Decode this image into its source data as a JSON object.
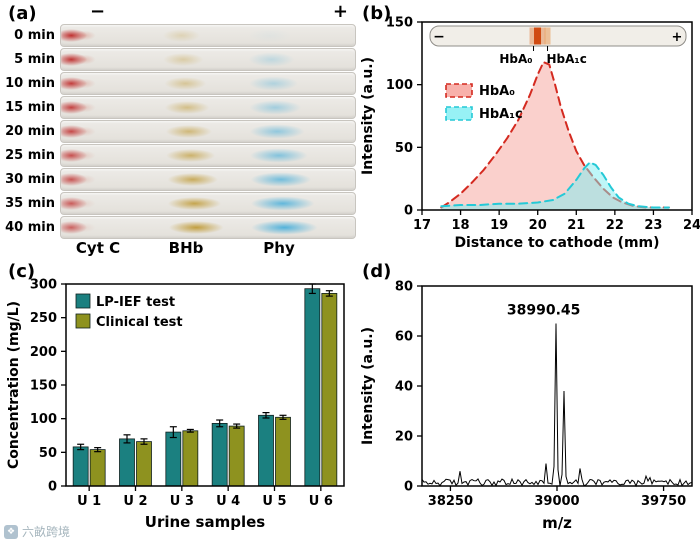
{
  "watermark": {
    "text": "六畝跨境",
    "icon": "❖"
  },
  "panel_a": {
    "label": "(a)",
    "minus": "−",
    "plus": "+",
    "rows": [
      "0 min",
      "5 min",
      "10 min",
      "15 min",
      "20 min",
      "25 min",
      "30 min",
      "35 min",
      "40 min"
    ],
    "lanes": [
      "Cyt C",
      "BHb",
      "Phy"
    ]
  },
  "panel_b": {
    "label": "(b)",
    "inset": {
      "minus": "−",
      "plus": "+",
      "labels": [
        "HbA₀",
        "HbA₁c"
      ]
    }
  },
  "panel_c": {
    "label": "(c)"
  },
  "panel_d": {
    "label": "(d)"
  },
  "chart_data": [
    {
      "id": "b",
      "type": "area",
      "title": "",
      "xlabel": "Distance to cathode (mm)",
      "ylabel": "Intensity (a.u.)",
      "xlim": [
        17,
        24
      ],
      "ylim": [
        0,
        150
      ],
      "xticks": [
        17,
        18,
        19,
        20,
        21,
        22,
        23,
        24
      ],
      "yticks": [
        0,
        50,
        100,
        150
      ],
      "legend_position": "upper left",
      "series": [
        {
          "name": "HbA₀",
          "color": "#d42a20",
          "fill": "#f5978f",
          "fill_opacity": 0.45,
          "x": [
            17.5,
            17.7,
            18.0,
            18.3,
            18.6,
            18.9,
            19.2,
            19.5,
            19.8,
            20.0,
            20.15,
            20.3,
            20.45,
            20.6,
            20.8,
            21.0,
            21.2,
            21.45,
            21.7,
            21.95,
            22.2,
            22.5,
            22.8,
            23.1,
            23.4
          ],
          "y": [
            2,
            6,
            13,
            22,
            32,
            44,
            57,
            72,
            92,
            108,
            118,
            116,
            100,
            82,
            63,
            47,
            36,
            26,
            17,
            10,
            6,
            3,
            2,
            2,
            2
          ]
        },
        {
          "name": "HbA₁c",
          "color": "#25c9d6",
          "fill": "#7deef2",
          "fill_opacity": 0.5,
          "x": [
            17.5,
            18.0,
            18.5,
            19.0,
            19.5,
            20.0,
            20.4,
            20.7,
            21.0,
            21.2,
            21.35,
            21.5,
            21.7,
            21.9,
            22.1,
            22.35,
            22.6,
            23.0,
            23.4
          ],
          "y": [
            3,
            4,
            4,
            5,
            5,
            6,
            8,
            13,
            24,
            33,
            38,
            36,
            28,
            18,
            10,
            5,
            3,
            2,
            2
          ]
        }
      ]
    },
    {
      "id": "c",
      "type": "bar",
      "categories": [
        "U 1",
        "U 2",
        "U 3",
        "U 4",
        "U 5",
        "U 6"
      ],
      "series": [
        {
          "name": "LP-IEF test",
          "color": "#1b8080",
          "values": [
            58,
            70,
            80,
            93,
            105,
            293
          ],
          "errors": [
            4,
            6,
            8,
            5,
            4,
            7
          ]
        },
        {
          "name": "Clinical test",
          "color": "#8e921f",
          "values": [
            54,
            66,
            82,
            89,
            102,
            286
          ],
          "errors": [
            3,
            4,
            2,
            3,
            3,
            4
          ]
        }
      ],
      "xlabel": "Urine samples",
      "ylabel": "Concentration (mg/L)",
      "ylim": [
        0,
        300
      ],
      "yticks": [
        0,
        50,
        100,
        150,
        200,
        250,
        300
      ],
      "legend_position": "upper left"
    },
    {
      "id": "d",
      "type": "line",
      "xlabel": "m/z",
      "ylabel": "Intensity (a.u.)",
      "xlim": [
        38050,
        39950
      ],
      "ylim": [
        0,
        80
      ],
      "xticks": [
        38250,
        39000,
        39750
      ],
      "yticks": [
        0,
        20,
        40,
        60,
        80
      ],
      "annotation": "38990.45",
      "peaks": [
        {
          "mz": 38990.45,
          "intensity": 65
        },
        {
          "mz": 39055,
          "intensity": 38
        },
        {
          "mz": 38925,
          "intensity": 9
        },
        {
          "mz": 39160,
          "intensity": 7
        }
      ]
    }
  ]
}
